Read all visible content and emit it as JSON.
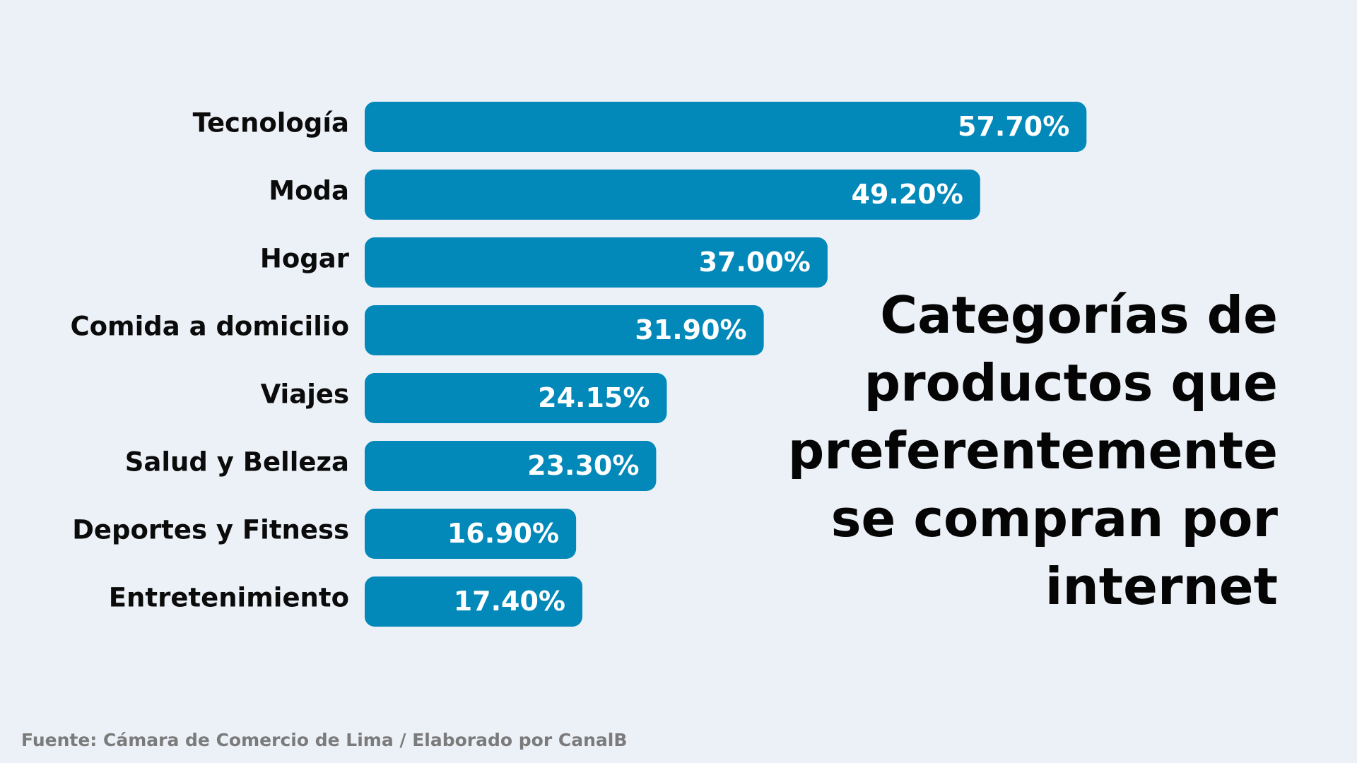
{
  "title_lines": [
    "Categorías de",
    "productos que",
    "preferentemente",
    "se compran por",
    "internet"
  ],
  "source": "Fuente: Cámara de Comercio de Lima / Elaborado por CanalB",
  "colors": {
    "bar": "#0288b9",
    "background": "#ecf1f7",
    "value_text": "#ffffff",
    "category_text": "#0b0b0b",
    "source_text": "#7b7b7b"
  },
  "chart_data": {
    "type": "bar",
    "orientation": "horizontal",
    "categories": [
      "Tecnología",
      "Moda",
      "Hogar",
      "Comida a domicilio",
      "Viajes",
      "Salud y Belleza",
      "Deportes y Fitness",
      "Entretenimiento"
    ],
    "values": [
      57.7,
      49.2,
      37.0,
      31.9,
      24.15,
      23.3,
      16.9,
      17.4
    ],
    "value_labels": [
      "57.70%",
      "49.20%",
      "37.00%",
      "31.90%",
      "24.15%",
      "23.30%",
      "16.90%",
      "17.40%"
    ],
    "title": "Categorías de productos que preferentemente se compran por internet",
    "xlabel": "",
    "ylabel": "",
    "xlim": [
      0,
      100
    ],
    "grid": false,
    "legend": "none"
  }
}
